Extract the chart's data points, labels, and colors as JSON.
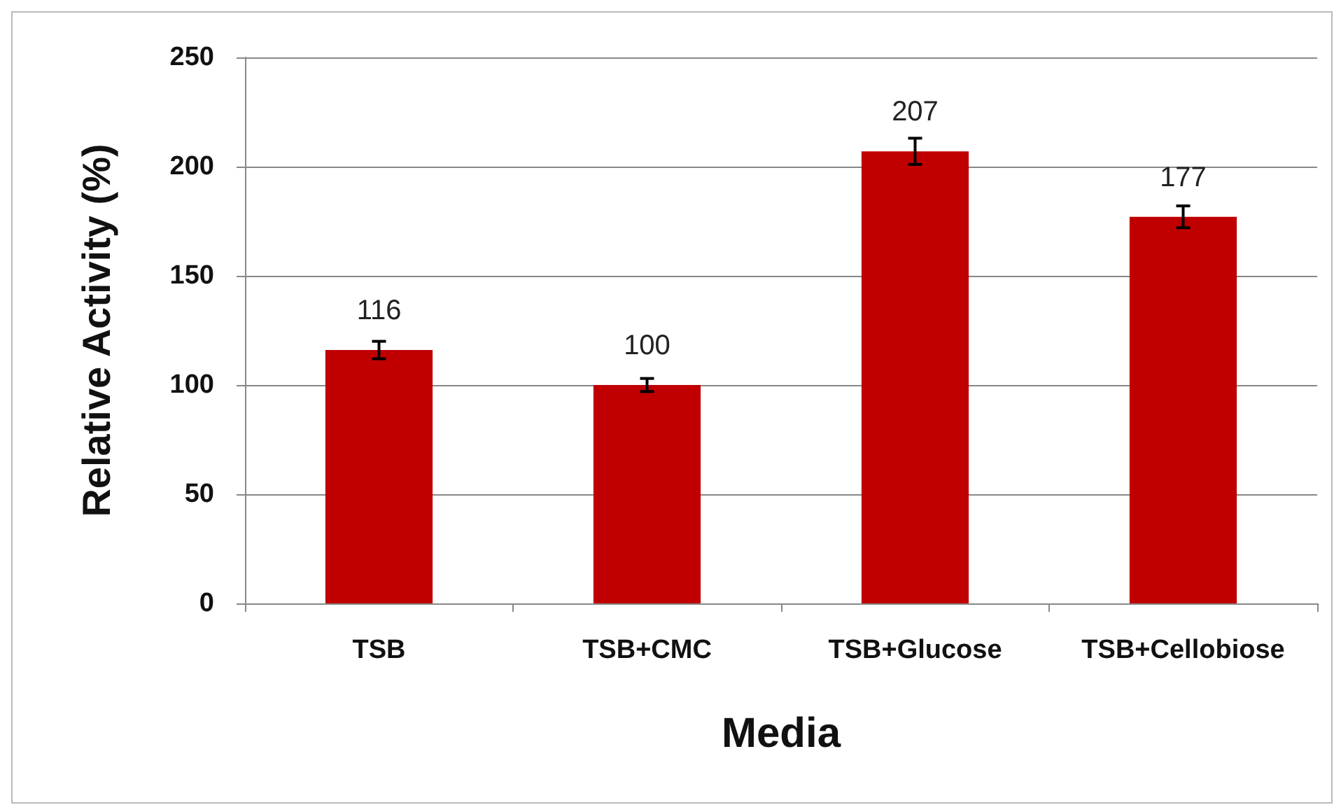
{
  "chart_data": {
    "type": "bar",
    "xlabel": "Media",
    "ylabel": "Relative Activity (%)",
    "categories": [
      "TSB",
      "TSB+CMC",
      "TSB+Glucose",
      "TSB+Cellobiose"
    ],
    "values": [
      116,
      100,
      207,
      177
    ],
    "color": "#c00000",
    "errors": [
      4,
      3,
      6,
      5
    ],
    "data_labels": true,
    "ylim": [
      0,
      250
    ],
    "yticks": [
      0,
      50,
      100,
      150,
      200,
      250
    ],
    "grid": "y"
  }
}
